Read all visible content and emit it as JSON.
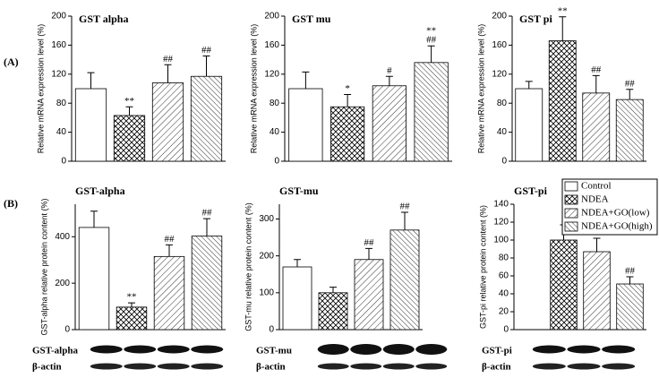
{
  "panel_labels": [
    "(A)",
    "(B)"
  ],
  "legend": [
    "Control",
    "NDEA",
    "NDEA+GO(low)",
    "NDEA+GO(high)"
  ],
  "blots": [
    {
      "label": "GST-alpha",
      "control": "β-actin"
    },
    {
      "label": "GST-mu",
      "control": "β-actin"
    },
    {
      "label": "GST-pi",
      "control": "β-actin"
    }
  ],
  "chart_data": [
    {
      "type": "bar",
      "title": "GST alpha",
      "y_label": "Relative mRNA expression level (%)",
      "values": [
        100,
        63,
        108,
        117
      ],
      "errors": [
        22,
        12,
        25,
        28
      ],
      "markers": [
        null,
        [
          "**"
        ],
        [
          "##"
        ],
        [
          "##"
        ]
      ],
      "ylim": [
        0,
        200
      ],
      "yticks": [
        0,
        40,
        80,
        120,
        160,
        200
      ]
    },
    {
      "type": "bar",
      "title": "GST mu",
      "y_label": "Relative mRNA expression level (%)",
      "values": [
        100,
        75,
        104,
        136
      ],
      "errors": [
        23,
        17,
        13,
        23
      ],
      "markers": [
        null,
        [
          "*"
        ],
        [
          "#"
        ],
        [
          "**",
          "##"
        ]
      ],
      "ylim": [
        0,
        200
      ],
      "yticks": [
        0,
        40,
        80,
        120,
        160,
        200
      ]
    },
    {
      "type": "bar",
      "title": "GST pi",
      "y_label": "Relative mRNA expression level (%)",
      "values": [
        100,
        166,
        94,
        85
      ],
      "errors": [
        10,
        33,
        24,
        14
      ],
      "markers": [
        null,
        [
          "**"
        ],
        [
          "##"
        ],
        [
          "##"
        ]
      ],
      "ylim": [
        0,
        200
      ],
      "yticks": [
        0,
        40,
        80,
        120,
        160,
        200
      ]
    },
    {
      "type": "bar",
      "title": "GST-alpha",
      "y_label": "GST-alpha relative protein content (%)",
      "values": [
        440,
        97,
        315,
        403
      ],
      "errors": [
        70,
        18,
        50,
        75
      ],
      "markers": [
        null,
        [
          "**"
        ],
        [
          "##"
        ],
        [
          "##"
        ]
      ],
      "ylim": [
        0,
        540
      ],
      "yticks": [
        0,
        200,
        400
      ]
    },
    {
      "type": "bar",
      "title": "GST-mu",
      "y_label": "GST-mu relative protein content (%)",
      "values": [
        170,
        100,
        190,
        270
      ],
      "errors": [
        20,
        15,
        30,
        48
      ],
      "markers": [
        null,
        null,
        [
          "##"
        ],
        [
          "##"
        ]
      ],
      "ylim": [
        0,
        340
      ],
      "yticks": [
        0,
        100,
        200,
        300
      ]
    },
    {
      "type": "bar",
      "title": "GST-pi",
      "y_label": "GST-pi relative protein content (%)",
      "values": [
        null,
        100,
        87,
        51
      ],
      "errors": [
        null,
        17,
        15,
        8
      ],
      "markers": [
        null,
        null,
        null,
        [
          "##"
        ]
      ],
      "ylim": [
        0,
        140
      ],
      "yticks": [
        0,
        20,
        40,
        60,
        80,
        100,
        120,
        140
      ]
    }
  ]
}
